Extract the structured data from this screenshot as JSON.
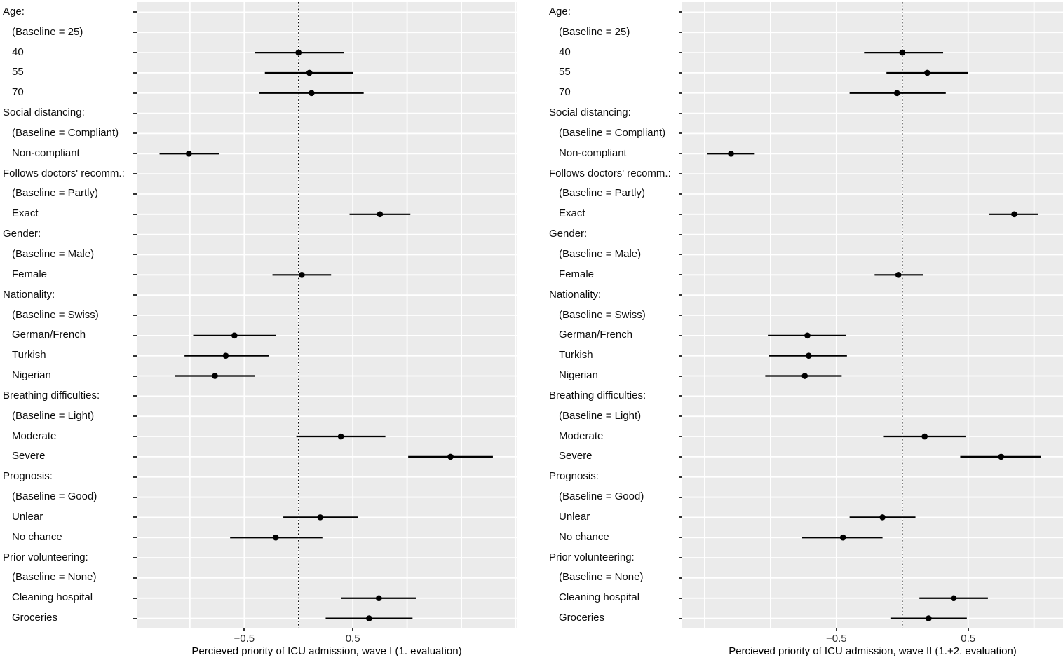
{
  "figure": {
    "background": "#FFFFFF",
    "panel_background": "#EBEBEB",
    "gridline_color": "#FFFFFF",
    "point_color": "#000000",
    "ci_color": "#000000",
    "axis_text_color": "#2e2e2e",
    "axis_title_color": "#000000",
    "zero_reference_line": {
      "value": 0,
      "style": "dotted",
      "color": "#000000"
    }
  },
  "chart_data": {
    "type": "scatter",
    "variant": "two-panel forest / coefficient plot: point estimates with 95% confidence interval bars, dotted vertical reference line at 0",
    "orientation": "horizontal",
    "legend": "none",
    "grid": "on",
    "gridline_step": 0.5,
    "rows": [
      {
        "label": "Age:",
        "kind": "header"
      },
      {
        "label": "(Baseline = 25)",
        "kind": "baseline"
      },
      {
        "label": "40",
        "kind": "estimate",
        "wave1": {
          "est": 0.0,
          "lo": -0.4,
          "hi": 0.42
        },
        "wave2": {
          "est": 0.0,
          "lo": -0.29,
          "hi": 0.31
        }
      },
      {
        "label": "55",
        "kind": "estimate",
        "wave1": {
          "est": 0.1,
          "lo": -0.31,
          "hi": 0.5
        },
        "wave2": {
          "est": 0.19,
          "lo": -0.12,
          "hi": 0.5
        }
      },
      {
        "label": "70",
        "kind": "estimate",
        "wave1": {
          "est": 0.12,
          "lo": -0.36,
          "hi": 0.6
        },
        "wave2": {
          "est": -0.04,
          "lo": -0.4,
          "hi": 0.33
        }
      },
      {
        "label": "Social distancing:",
        "kind": "header"
      },
      {
        "label": "(Baseline = Compliant)",
        "kind": "baseline"
      },
      {
        "label": "Non-compliant",
        "kind": "estimate",
        "wave1": {
          "est": -1.01,
          "lo": -1.28,
          "hi": -0.73
        },
        "wave2": {
          "est": -1.3,
          "lo": -1.48,
          "hi": -1.12
        }
      },
      {
        "label": "Follows doctors' recomm.:",
        "kind": "header"
      },
      {
        "label": "(Baseline = Partly)",
        "kind": "baseline"
      },
      {
        "label": "Exact",
        "kind": "estimate",
        "wave1": {
          "est": 0.75,
          "lo": 0.47,
          "hi": 1.03
        },
        "wave2": {
          "est": 0.85,
          "lo": 0.66,
          "hi": 1.03
        }
      },
      {
        "label": "Gender:",
        "kind": "header"
      },
      {
        "label": "(Baseline = Male)",
        "kind": "baseline"
      },
      {
        "label": "Female",
        "kind": "estimate",
        "wave1": {
          "est": 0.03,
          "lo": -0.24,
          "hi": 0.3
        },
        "wave2": {
          "est": -0.03,
          "lo": -0.21,
          "hi": 0.16
        }
      },
      {
        "label": "Nationality:",
        "kind": "header"
      },
      {
        "label": "(Baseline = Swiss)",
        "kind": "baseline"
      },
      {
        "label": "German/French",
        "kind": "estimate",
        "wave1": {
          "est": -0.59,
          "lo": -0.97,
          "hi": -0.21
        },
        "wave2": {
          "est": -0.72,
          "lo": -1.02,
          "hi": -0.43
        }
      },
      {
        "label": "Turkish",
        "kind": "estimate",
        "wave1": {
          "est": -0.67,
          "lo": -1.05,
          "hi": -0.27
        },
        "wave2": {
          "est": -0.71,
          "lo": -1.01,
          "hi": -0.42
        }
      },
      {
        "label": "Nigerian",
        "kind": "estimate",
        "wave1": {
          "est": -0.77,
          "lo": -1.14,
          "hi": -0.4
        },
        "wave2": {
          "est": -0.74,
          "lo": -1.04,
          "hi": -0.46
        }
      },
      {
        "label": "Breathing difficulties:",
        "kind": "header"
      },
      {
        "label": "(Baseline = Light)",
        "kind": "baseline"
      },
      {
        "label": "Moderate",
        "kind": "estimate",
        "wave1": {
          "est": 0.39,
          "lo": -0.02,
          "hi": 0.8
        },
        "wave2": {
          "est": 0.17,
          "lo": -0.14,
          "hi": 0.48
        }
      },
      {
        "label": "Severe",
        "kind": "estimate",
        "wave1": {
          "est": 1.4,
          "lo": 1.01,
          "hi": 1.79
        },
        "wave2": {
          "est": 0.75,
          "lo": 0.44,
          "hi": 1.05
        }
      },
      {
        "label": "Prognosis:",
        "kind": "header"
      },
      {
        "label": "(Baseline = Good)",
        "kind": "baseline"
      },
      {
        "label": "Unlear",
        "kind": "estimate",
        "wave1": {
          "est": 0.2,
          "lo": -0.14,
          "hi": 0.55
        },
        "wave2": {
          "est": -0.15,
          "lo": -0.4,
          "hi": 0.1
        }
      },
      {
        "label": "No chance",
        "kind": "estimate",
        "wave1": {
          "est": -0.21,
          "lo": -0.63,
          "hi": 0.22
        },
        "wave2": {
          "est": -0.45,
          "lo": -0.76,
          "hi": -0.15
        }
      },
      {
        "label": "Prior volunteering:",
        "kind": "header"
      },
      {
        "label": "(Baseline = None)",
        "kind": "baseline"
      },
      {
        "label": "Cleaning hospital",
        "kind": "estimate",
        "wave1": {
          "est": 0.74,
          "lo": 0.39,
          "hi": 1.08
        },
        "wave2": {
          "est": 0.39,
          "lo": 0.13,
          "hi": 0.65
        }
      },
      {
        "label": "Groceries",
        "kind": "estimate",
        "wave1": {
          "est": 0.65,
          "lo": 0.25,
          "hi": 1.05
        },
        "wave2": {
          "est": 0.2,
          "lo": -0.09,
          "hi": 0.49
        }
      }
    ],
    "panels": [
      {
        "id": "wave1",
        "xlabel": "Percieved priority of ICU admission, wave I (1. evaluation)",
        "xlim": [
          -1.49,
          2.01
        ],
        "xticks": [
          -0.5,
          0.5
        ],
        "xtick_labels": [
          "−0.5",
          "0.5"
        ]
      },
      {
        "id": "wave2",
        "xlabel": "Percieved priority of ICU admission, wave II (1.+2. evaluation)",
        "xlim": [
          -1.67,
          1.22
        ],
        "xticks": [
          -0.5,
          0.5
        ],
        "xtick_labels": [
          "−0.5",
          "0.5"
        ]
      }
    ]
  }
}
